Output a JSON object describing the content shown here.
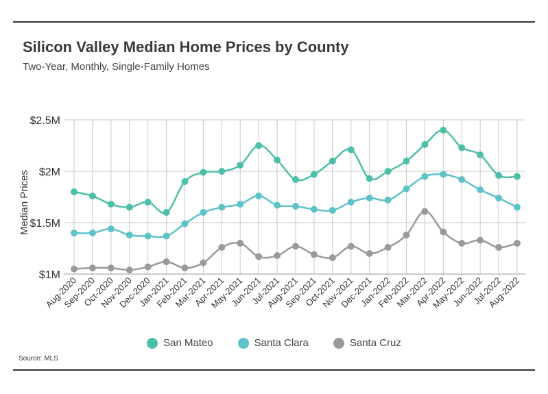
{
  "header": {
    "title": "Silicon Valley Median Home Prices by County",
    "subtitle": "Two-Year, Monthly, Single-Family Homes"
  },
  "footer": {
    "source": "Source:  MLS"
  },
  "chart_data": {
    "type": "line",
    "title": "Silicon Valley Median Home Prices by County",
    "subtitle": "Two-Year, Monthly, Single-Family Homes",
    "xlabel": "",
    "ylabel": "Median Prices",
    "ylim": [
      1000000,
      2500000
    ],
    "yticks": [
      {
        "value": 1000000,
        "label": "$1M"
      },
      {
        "value": 1500000,
        "label": "$1.5M"
      },
      {
        "value": 2000000,
        "label": "$2M"
      },
      {
        "value": 2500000,
        "label": "$2.5M"
      }
    ],
    "grid": true,
    "legend_position": "bottom",
    "categories": [
      "Aug-2020",
      "Sep-2020",
      "Oct-2020",
      "Nov-2020",
      "Dec-2020",
      "Jan-2021",
      "Feb-2021",
      "Mar-2021",
      "Apr-2021",
      "May-2021",
      "Jun-2021",
      "Jul-2021",
      "Aug-2021",
      "Sep-2021",
      "Oct-2021",
      "Nov-2021",
      "Dec-2021",
      "Jan-2022",
      "Feb-2022",
      "Mar-2022",
      "Apr-2022",
      "May-2022",
      "Jun-2022",
      "Jul-2022",
      "Aug-2022"
    ],
    "series": [
      {
        "name": "San Mateo",
        "color": "#4dbfa9",
        "values": [
          1800000,
          1760000,
          1680000,
          1650000,
          1700000,
          1600000,
          1900000,
          1990000,
          2000000,
          2060000,
          2250000,
          2110000,
          1920000,
          1970000,
          2100000,
          2210000,
          1930000,
          2000000,
          2100000,
          2260000,
          2400000,
          2230000,
          2160000,
          1960000,
          1950000
        ]
      },
      {
        "name": "Santa Clara",
        "color": "#5ec2c9",
        "values": [
          1400000,
          1400000,
          1440000,
          1380000,
          1370000,
          1370000,
          1490000,
          1600000,
          1650000,
          1680000,
          1760000,
          1670000,
          1660000,
          1630000,
          1620000,
          1700000,
          1740000,
          1720000,
          1830000,
          1950000,
          1970000,
          1920000,
          1820000,
          1740000,
          1650000
        ]
      },
      {
        "name": "Santa Cruz",
        "color": "#9a9a9a",
        "values": [
          1050000,
          1060000,
          1060000,
          1040000,
          1070000,
          1120000,
          1060000,
          1110000,
          1260000,
          1300000,
          1170000,
          1180000,
          1270000,
          1190000,
          1160000,
          1270000,
          1200000,
          1260000,
          1380000,
          1610000,
          1410000,
          1300000,
          1330000,
          1260000,
          1300000
        ]
      }
    ]
  }
}
